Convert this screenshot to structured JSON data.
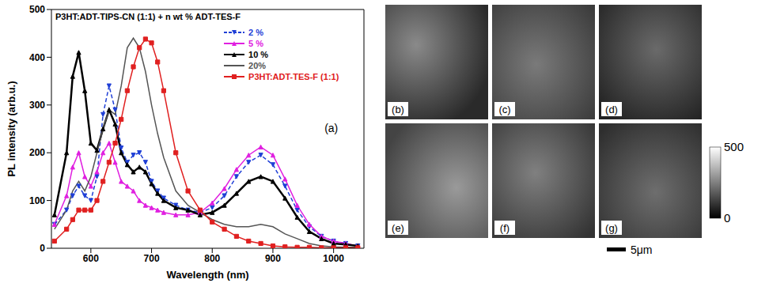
{
  "chart_data": {
    "type": "line",
    "title": "P3HT:ADT-TIPS-CN (1:1) + n wt % ADT-TES-F",
    "annotation": "(a)",
    "x_label": "Wavelength (nm)",
    "y_label": "PL intensity (arb.u.)",
    "xlim": [
      535,
      1050
    ],
    "xticks": [
      600,
      700,
      800,
      900,
      1000
    ],
    "ylim": [
      0,
      500
    ],
    "yticks": [
      0,
      100,
      200,
      300,
      400,
      500
    ],
    "grid": false,
    "legend": "upper right",
    "x": [
      540,
      560,
      570,
      580,
      590,
      600,
      610,
      620,
      630,
      640,
      650,
      660,
      670,
      680,
      690,
      700,
      710,
      720,
      740,
      760,
      780,
      800,
      820,
      840,
      860,
      880,
      900,
      920,
      940,
      960,
      980,
      1000,
      1020,
      1040
    ],
    "series": [
      {
        "name": "2 %",
        "color": "#1f3fd6",
        "marker": "triangle-down",
        "line_style": "dashed",
        "values": [
          50,
          80,
          110,
          130,
          110,
          100,
          150,
          280,
          340,
          290,
          210,
          180,
          195,
          200,
          180,
          140,
          120,
          105,
          90,
          80,
          75,
          85,
          110,
          150,
          180,
          195,
          175,
          130,
          80,
          45,
          25,
          15,
          10,
          5
        ]
      },
      {
        "name": "5 %",
        "color": "#e020e0",
        "marker": "triangle-up",
        "line_style": "solid",
        "values": [
          50,
          110,
          170,
          200,
          150,
          130,
          160,
          200,
          220,
          180,
          140,
          130,
          120,
          100,
          90,
          85,
          80,
          75,
          70,
          70,
          75,
          95,
          125,
          165,
          195,
          212,
          195,
          145,
          90,
          50,
          25,
          15,
          10,
          5
        ]
      },
      {
        "name": "10 %",
        "color": "#000000",
        "marker": "triangle-up",
        "line_style": "solid",
        "values": [
          70,
          200,
          360,
          410,
          330,
          220,
          205,
          250,
          290,
          260,
          200,
          175,
          160,
          170,
          160,
          135,
          115,
          100,
          85,
          80,
          70,
          75,
          90,
          115,
          140,
          150,
          140,
          105,
          65,
          35,
          20,
          10,
          8,
          5
        ]
      },
      {
        "name": "20%",
        "color": "#555555",
        "marker": "none",
        "line_style": "solid",
        "values": [
          40,
          80,
          120,
          140,
          120,
          150,
          200,
          250,
          290,
          280,
          340,
          420,
          440,
          420,
          370,
          300,
          240,
          190,
          120,
          90,
          75,
          60,
          50,
          45,
          45,
          50,
          45,
          30,
          20,
          10,
          5,
          3,
          2,
          2
        ]
      },
      {
        "name": "P3HT:ADT-TES-F (1:1)",
        "color": "#e02020",
        "marker": "square",
        "line_style": "solid",
        "values": [
          15,
          40,
          60,
          80,
          80,
          80,
          100,
          140,
          180,
          220,
          270,
          330,
          380,
          420,
          438,
          430,
          390,
          330,
          200,
          120,
          80,
          55,
          40,
          25,
          15,
          10,
          5,
          3,
          2,
          2,
          1,
          1,
          1,
          1
        ]
      }
    ]
  },
  "panels": {
    "labels": [
      "(b)",
      "(c)",
      "(d)",
      "(e)",
      "(f)",
      "(g)"
    ],
    "colorbar": {
      "range": [
        0,
        500
      ],
      "ticks": [
        0,
        500
      ]
    },
    "scale_bar": "5μm"
  }
}
